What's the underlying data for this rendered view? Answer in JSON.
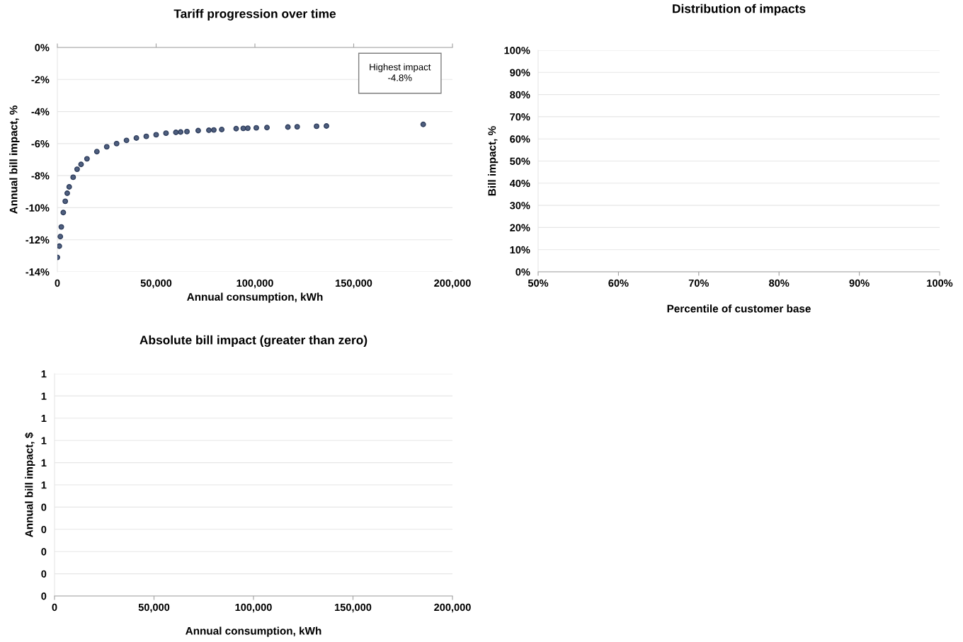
{
  "chart_data": [
    {
      "type": "scatter",
      "title": "Tariff progression over time",
      "xlabel": "Annual consumption, kWh",
      "ylabel": "Annual bill impact, %",
      "x": [
        0,
        1000,
        1500,
        2000,
        3000,
        4000,
        5000,
        6000,
        8000,
        10000,
        12000,
        15000,
        20000,
        25000,
        30000,
        35000,
        40000,
        45000,
        50000,
        55000,
        60000,
        62400,
        65600,
        71300,
        76700,
        79200,
        83200,
        90500,
        94100,
        96400,
        100700,
        106100,
        116700,
        121400,
        131200,
        136200,
        185200
      ],
      "series": [
        {
          "color": "#4f5f7f",
          "values": [
            -13.1,
            -12.4,
            -11.8,
            -11.2,
            -10.3,
            -9.6,
            -9.1,
            -8.7,
            -8.1,
            -7.6,
            -7.3,
            -6.95,
            -6.5,
            -6.2,
            -6.0,
            -5.8,
            -5.65,
            -5.55,
            -5.45,
            -5.35,
            -5.3,
            -5.28,
            -5.25,
            -5.19,
            -5.17,
            -5.15,
            -5.12,
            -5.07,
            -5.05,
            -5.04,
            -5.02,
            -5.0,
            -4.97,
            -4.95,
            -4.92,
            -4.9,
            -4.8
          ]
        }
      ],
      "marker": "circle",
      "grid": "y",
      "annotations": [
        "Highest impact\n-4.8%"
      ],
      "xlim": [
        0,
        200000
      ],
      "xticks": [
        {
          "value": 0,
          "label": "0"
        },
        {
          "value": 50000,
          "label": "50,000"
        },
        {
          "value": 100000,
          "label": "100,000"
        },
        {
          "value": 150000,
          "label": "150,000"
        },
        {
          "value": 200000,
          "label": "200,000"
        }
      ],
      "ylim": [
        -14,
        0
      ],
      "yticks": [
        {
          "value": -14,
          "label": "-14%"
        },
        {
          "value": -12,
          "label": "-12%"
        },
        {
          "value": -10,
          "label": "-10%"
        },
        {
          "value": -8,
          "label": "-8%"
        },
        {
          "value": -6,
          "label": "-6%"
        },
        {
          "value": -4,
          "label": "-4%"
        },
        {
          "value": -2,
          "label": "-2%"
        },
        {
          "value": 0,
          "label": "0%"
        }
      ]
    },
    {
      "type": "scatter",
      "title": "Distribution of impacts",
      "xlabel": "Percentile of customer base",
      "ylabel": "Bill impact, %",
      "grid": "y",
      "xlim": [
        50,
        100
      ],
      "xticks": [
        {
          "value": 50,
          "label": "50%"
        },
        {
          "value": 60,
          "label": "60%"
        },
        {
          "value": 70,
          "label": "70%"
        },
        {
          "value": 80,
          "label": "80%"
        },
        {
          "value": 90,
          "label": "90%"
        },
        {
          "value": 100,
          "label": "100%"
        }
      ],
      "ylim": [
        0,
        100
      ],
      "yticks": [
        {
          "value": 0,
          "label": "0%"
        },
        {
          "value": 10,
          "label": "10%"
        },
        {
          "value": 20,
          "label": "20%"
        },
        {
          "value": 30,
          "label": "30%"
        },
        {
          "value": 40,
          "label": "40%"
        },
        {
          "value": 50,
          "label": "50%"
        },
        {
          "value": 60,
          "label": "60%"
        },
        {
          "value": 70,
          "label": "70%"
        },
        {
          "value": 80,
          "label": "80%"
        },
        {
          "value": 90,
          "label": "90%"
        },
        {
          "value": 100,
          "label": "100%"
        }
      ]
    },
    {
      "type": "scatter",
      "title": "Absolute bill impact (greater than zero)",
      "xlabel": "Annual consumption, kWh",
      "ylabel": "Annual bill impact, $",
      "grid": "y",
      "xlim": [
        0,
        200000
      ],
      "xticks": [
        {
          "value": 0,
          "label": "0"
        },
        {
          "value": 50000,
          "label": "50,000"
        },
        {
          "value": 100000,
          "label": "100,000"
        },
        {
          "value": 150000,
          "label": "150,000"
        },
        {
          "value": 200000,
          "label": "200,000"
        }
      ],
      "ylim": [
        0,
        1
      ],
      "yticks": [
        {
          "value": 0,
          "label": "0"
        },
        {
          "value": 0.1,
          "label": "0"
        },
        {
          "value": 0.2,
          "label": "0"
        },
        {
          "value": 0.3,
          "label": "0"
        },
        {
          "value": 0.4,
          "label": "0"
        },
        {
          "value": 0.5,
          "label": "1"
        },
        {
          "value": 0.6,
          "label": "1"
        },
        {
          "value": 0.7,
          "label": "1"
        },
        {
          "value": 0.8,
          "label": "1"
        },
        {
          "value": 0.9,
          "label": "1"
        },
        {
          "value": 1,
          "label": "1"
        }
      ]
    }
  ]
}
